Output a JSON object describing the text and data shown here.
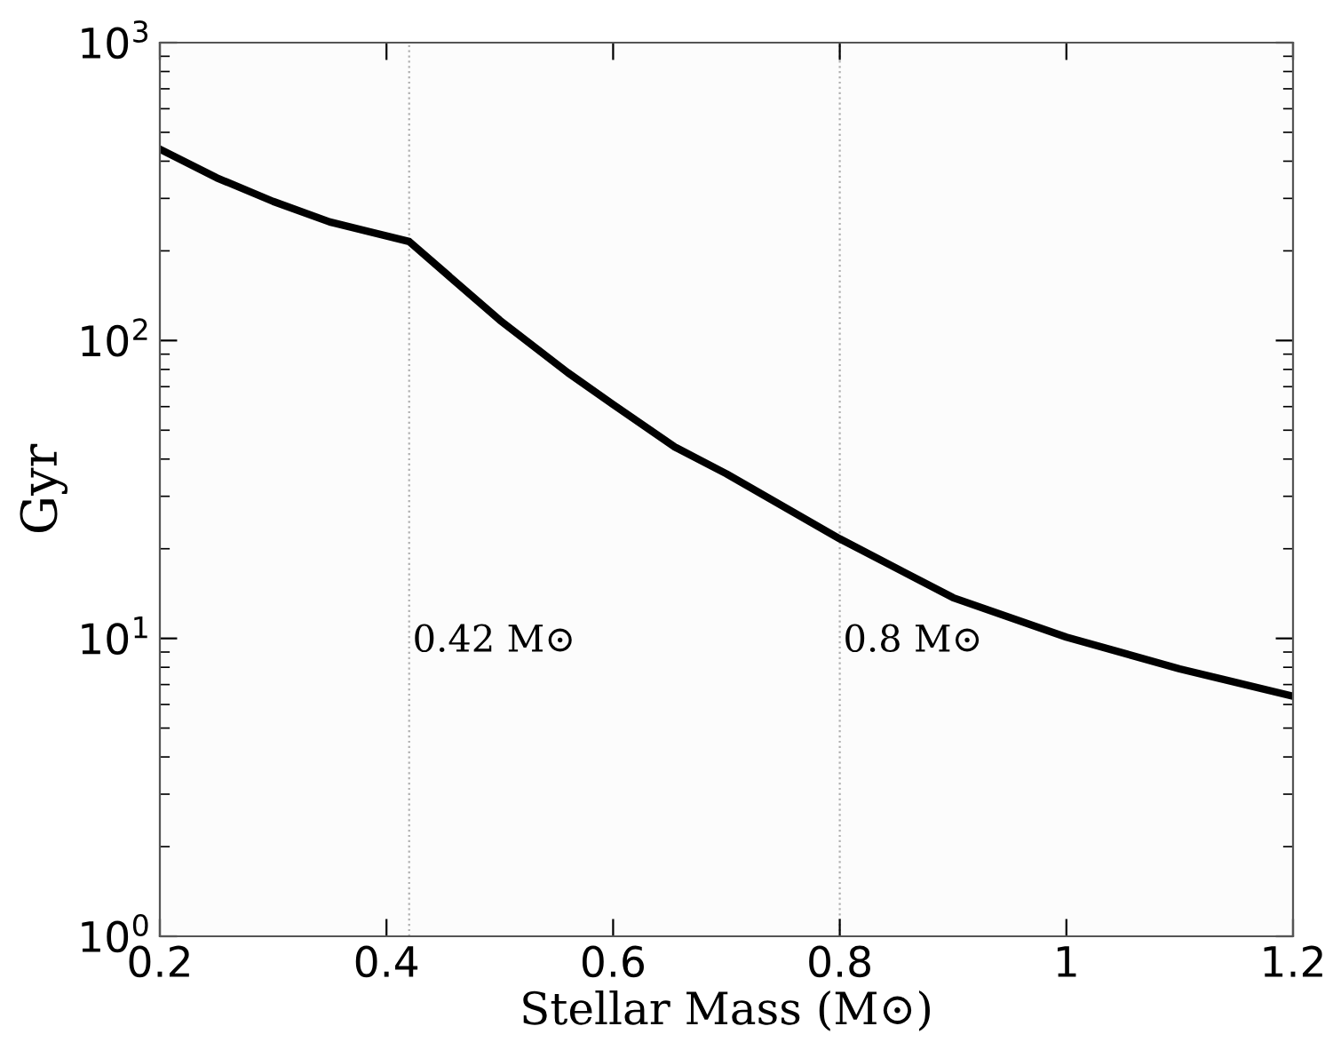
{
  "chart_data": {
    "type": "line",
    "xlabel": "Stellar Mass (M⊙)",
    "ylabel": "Gyr",
    "log": "y",
    "grid": false,
    "line_style": "solid",
    "marker": "none",
    "x": [
      0.2,
      0.25,
      0.3,
      0.35,
      0.42,
      0.5,
      0.56,
      0.6,
      0.6545,
      0.7,
      0.8,
      0.9,
      1.0,
      1.1,
      1.2
    ],
    "series": [
      {
        "color": "#000000",
        "values": [
          439,
          352,
          293,
          250,
          215,
          117,
          78,
          61,
          43.9,
          35.7,
          21.6,
          13.7,
          10.1,
          7.9,
          6.4
        ]
      }
    ],
    "xlim": [
      0.2,
      1.2
    ],
    "xticks": [
      0.2,
      0.4,
      0.6,
      0.8,
      1,
      1.2
    ],
    "ylim": [
      1,
      1000
    ],
    "yticks": [
      {
        "value": 1,
        "label": "10$^{0}$"
      },
      {
        "value": 10,
        "label": "10$^{1}$"
      },
      {
        "value": 100,
        "label": "10$^{2}$"
      },
      {
        "value": 1000,
        "label": "10$^{3}$"
      }
    ],
    "ref_lines": [
      {
        "axis": "x",
        "value": 0.42,
        "label": "0.42 M⊙",
        "color": "#b0b0b0",
        "line_style": "dotted"
      },
      {
        "axis": "x",
        "value": 0.8,
        "label": "0.8 M⊙",
        "color": "#b0b0b0",
        "line_style": "dotted"
      }
    ]
  }
}
